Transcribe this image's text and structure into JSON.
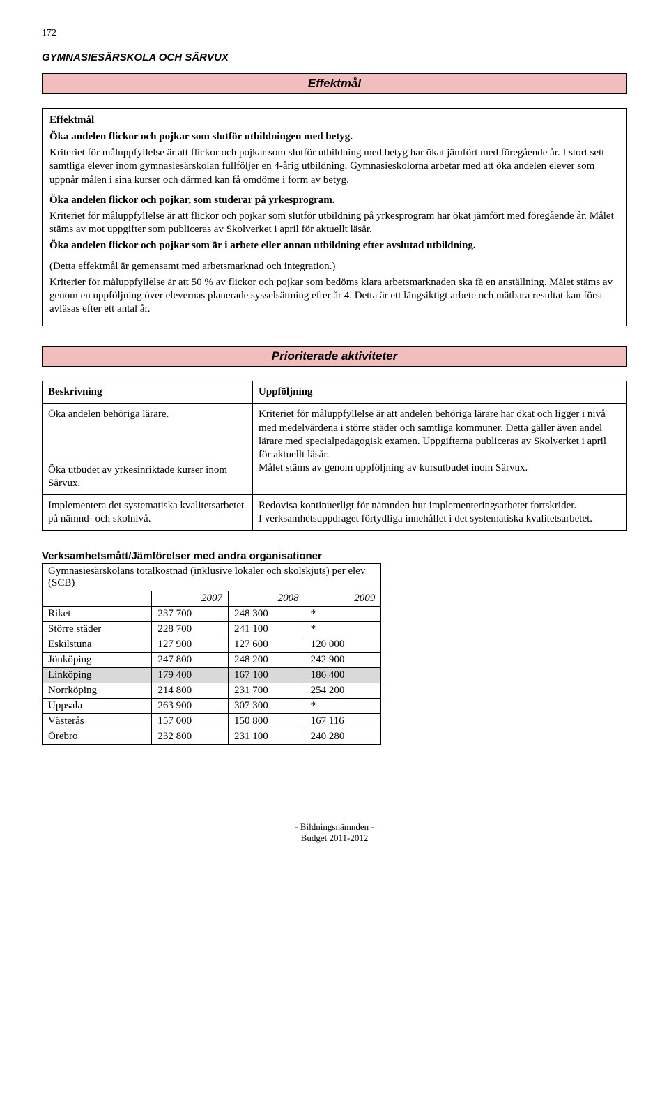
{
  "page_number": "172",
  "doc_title": "GYMNASIESÄRSKOLA OCH SÄRVUX",
  "banner1": "Effektmål",
  "effekt": {
    "header": "Effektmål",
    "p1_bold": "Öka andelen flickor och pojkar som slutför utbildningen med betyg.",
    "p2": "Kriteriet för måluppfyllelse är att flickor och pojkar som slutför utbildning med betyg har ökat jämfört med föregående år. I stort sett samtliga elever inom gymnasiesärskolan fullföljer en 4-årig utbildning. Gymnasieskolorna arbetar med att öka andelen elever som uppnår målen i sina kurser och därmed kan få omdöme i form av betyg.",
    "p3_bold": "Öka andelen flickor och pojkar, som studerar på yrkesprogram.",
    "p4": "Kriteriet för måluppfyllelse är att flickor och pojkar som slutför utbildning på yrkesprogram har ökat jämfört med föregående år. Målet stäms av mot uppgifter som publiceras av Skolverket i april för aktuellt läsår.",
    "p5_bold": "Öka andelen flickor och pojkar som är i arbete eller annan utbildning efter avslutad utbildning.",
    "p6": "(Detta effektmål är gemensamt med arbetsmarknad och integration.)",
    "p7": "Kriterier för måluppfyllelse är att 50 % av flickor och pojkar som bedöms klara arbetsmarknaden ska få en anställning. Målet stäms av genom en uppföljning över elevernas planerade sysselsättning efter år 4. Detta är ett långsiktigt arbete och mätbara resultat kan först avläsas efter ett antal år."
  },
  "banner2": "Prioriterade aktiviteter",
  "activities": {
    "col1_header": "Beskrivning",
    "col2_header": "Uppföljning",
    "r1c1": "Öka andelen behöriga lärare.",
    "r1c2": "Kriteriet för måluppfyllelse är att andelen behöriga lärare har ökat och ligger i nivå med medelvärdena i större städer och samtliga kommuner. Detta gäller även andel lärare med specialpedagogisk examen. Uppgifterna publiceras av Skolverket i april för aktuellt läsår.",
    "r2c1": "Öka utbudet av yrkesinriktade kurser inom Särvux.",
    "r2c2": "Målet stäms av genom uppföljning av kursutbudet inom Särvux.",
    "r3c1": "Implementera det systematiska kvalitetsarbetet på nämnd- och skolnivå.",
    "r3c2a": "Redovisa kontinuerligt för nämnden hur implementeringsarbetet fortskrider.",
    "r3c2b": "I verksamhetsuppdraget förtydliga innehållet i det systematiska kvalitetsarbetet."
  },
  "comparison": {
    "heading": "Verksamhetsmått/Jämförelser med andra organisationer",
    "caption": "Gymnasiesärskolans totalkostnad (inklusive lokaler och skolskjuts) per elev (SCB)",
    "years": [
      "2007",
      "2008",
      "2009"
    ],
    "rows": [
      {
        "label": "Riket",
        "v": [
          "237 700",
          "248 300",
          "*"
        ]
      },
      {
        "label": "Större städer",
        "v": [
          "228 700",
          "241 100",
          "*"
        ]
      },
      {
        "label": "Eskilstuna",
        "v": [
          "127 900",
          "127 600",
          "120 000"
        ]
      },
      {
        "label": "Jönköping",
        "v": [
          "247 800",
          "248 200",
          "242 900"
        ]
      },
      {
        "label": "Linköping",
        "v": [
          "179 400",
          "167 100",
          "186 400"
        ],
        "highlight": true
      },
      {
        "label": "Norrköping",
        "v": [
          "214 800",
          "231 700",
          "254 200"
        ]
      },
      {
        "label": "Uppsala",
        "v": [
          "263 900",
          "307 300",
          "*"
        ]
      },
      {
        "label": "Västerås",
        "v": [
          "157 000",
          "150 800",
          "167 116"
        ]
      },
      {
        "label": "Örebro",
        "v": [
          "232 800",
          "231 100",
          "240 280"
        ]
      }
    ]
  },
  "footer_line1": "- Bildningsnämnden -",
  "footer_line2": "Budget 2011-2012"
}
